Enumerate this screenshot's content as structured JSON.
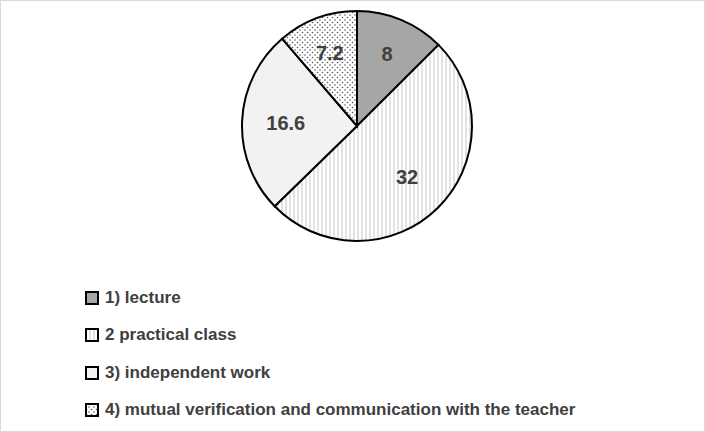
{
  "chart_data": {
    "type": "pie",
    "categories": [
      "1) lecture",
      "2 practical class",
      "3) independent work",
      "4) mutual verification and communication with the teacher"
    ],
    "values": [
      8,
      32,
      16.6,
      7.2
    ],
    "colors": [
      "#a6a6a6",
      "#ffffff",
      "#f2f2f2",
      "#ffffff"
    ],
    "data_labels": true,
    "legend": "bottom-left"
  }
}
